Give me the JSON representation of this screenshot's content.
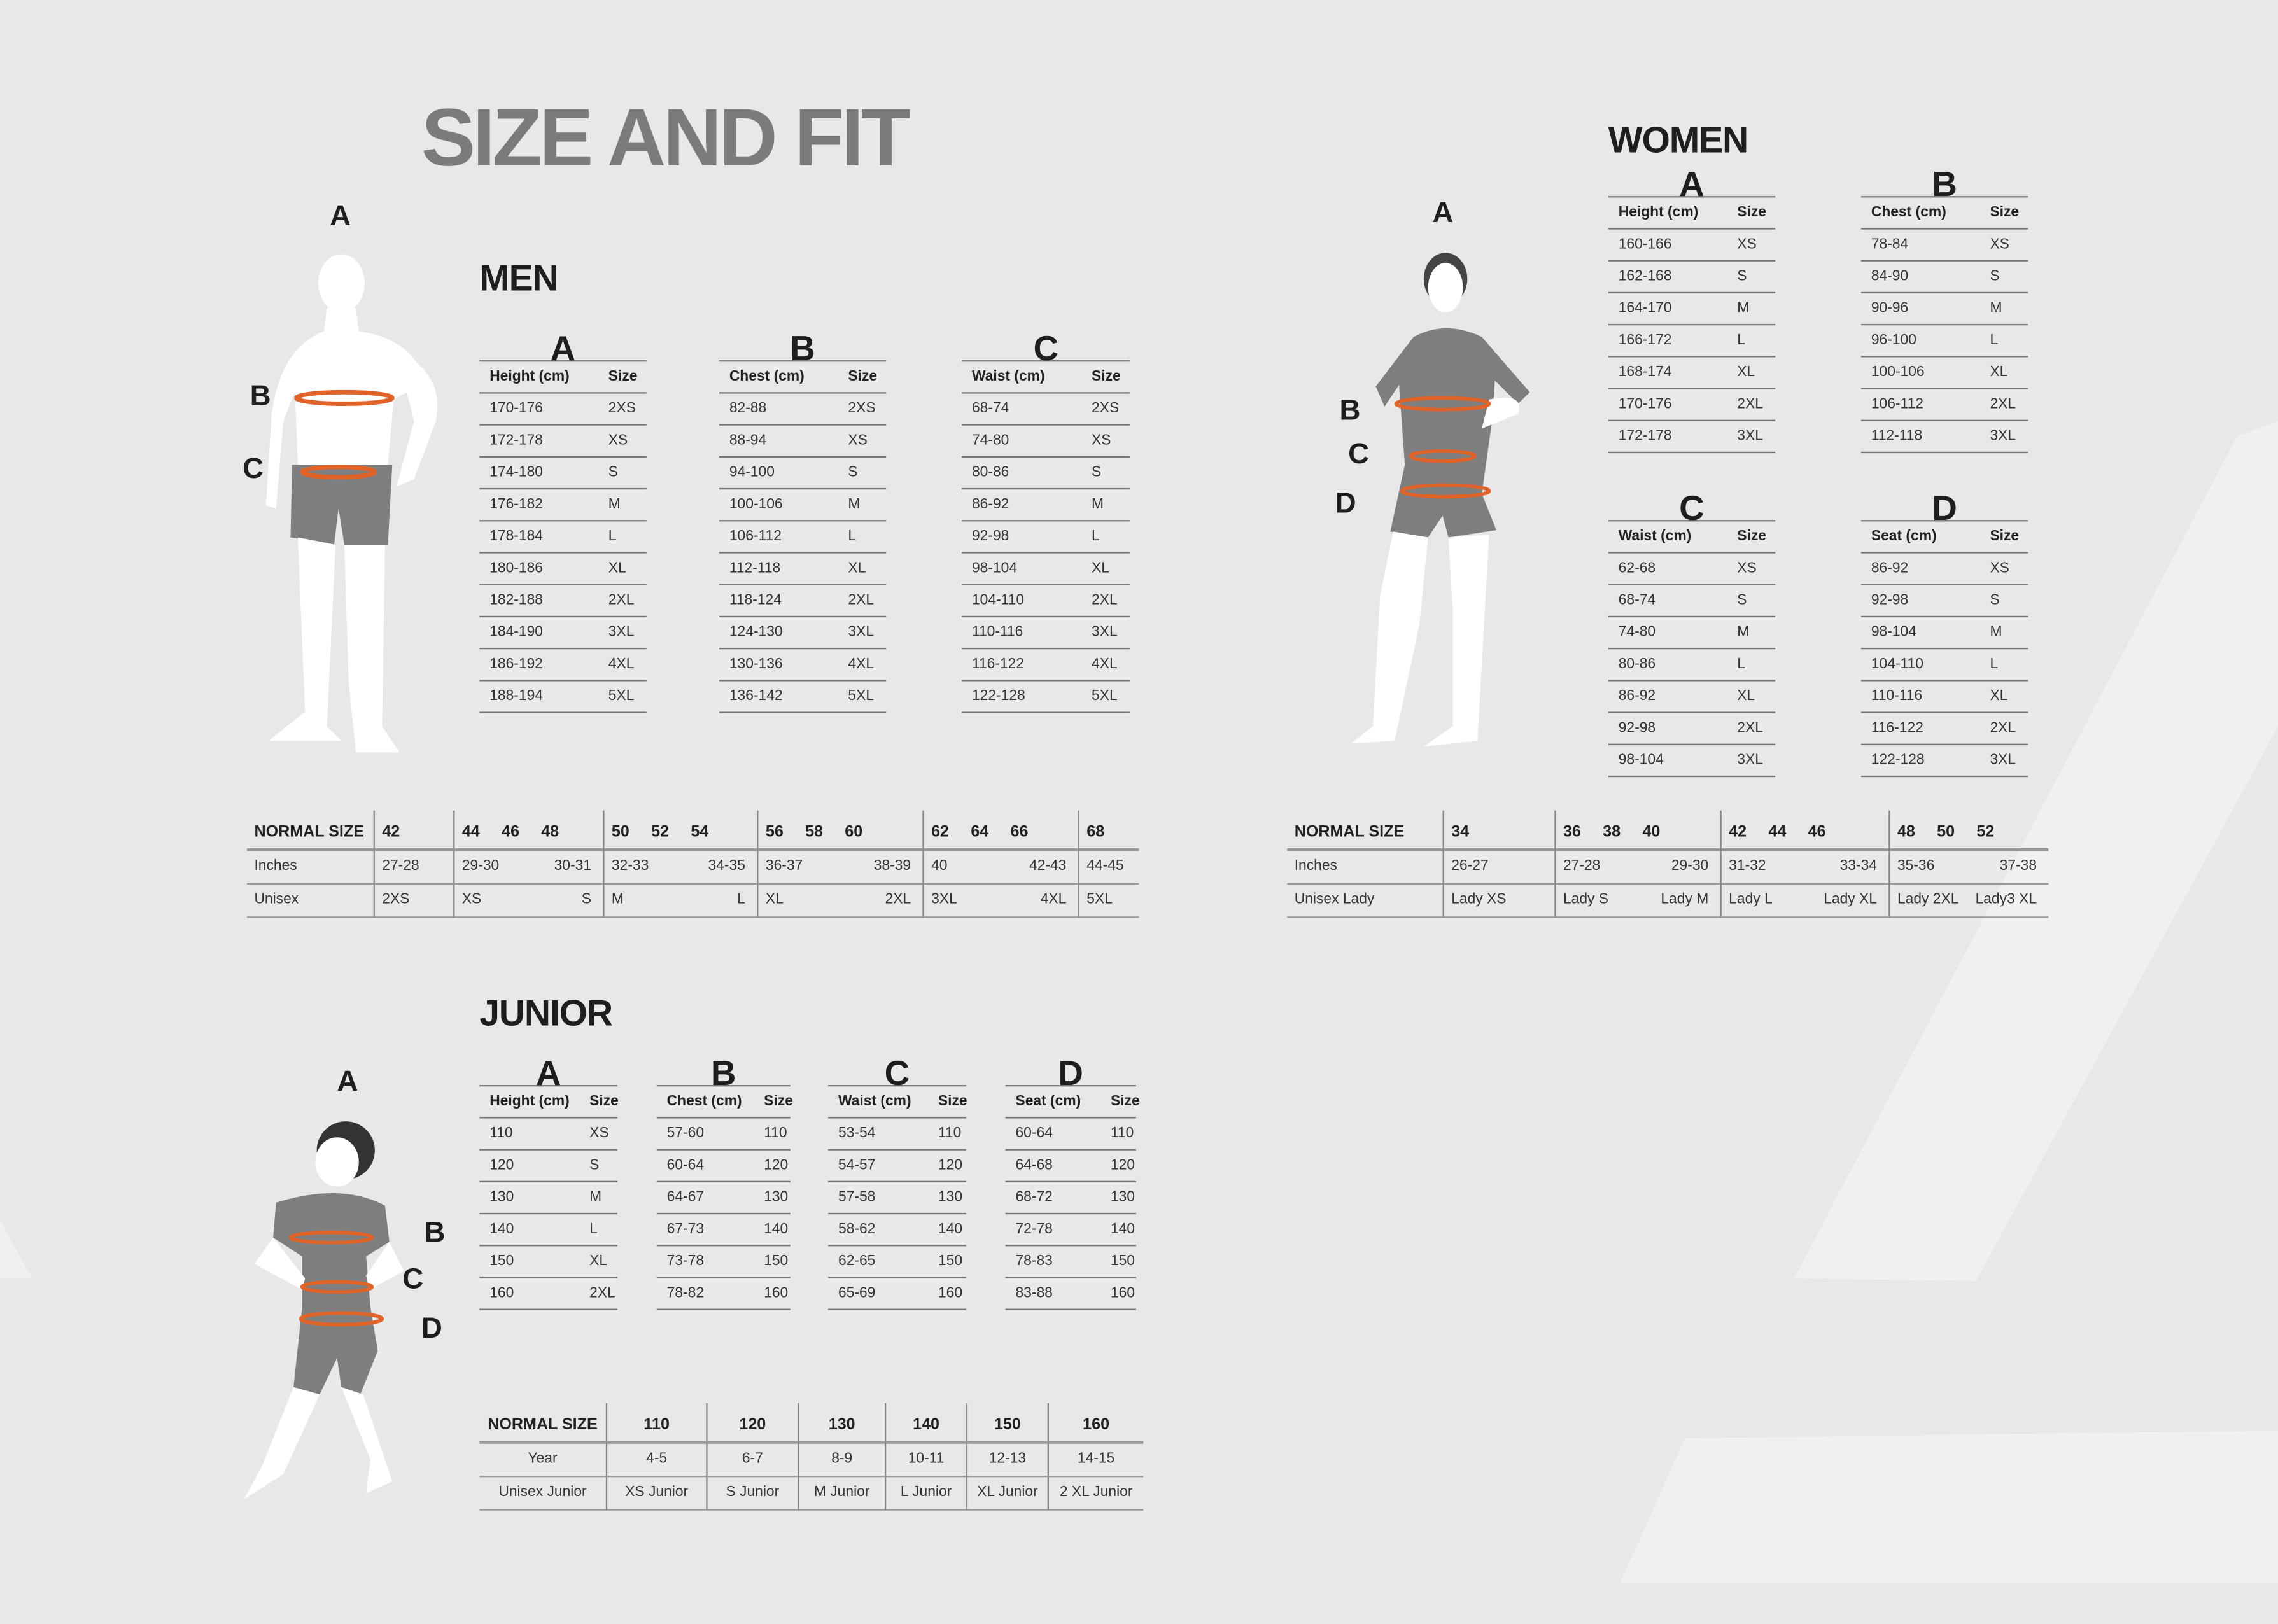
{
  "title": "SIZE AND FIT",
  "colors": {
    "background": "#e8e8e8",
    "title": "#7b7b7b",
    "measure_band": "#e0632a",
    "garment": "#7e7e7e",
    "body": "#ffffff"
  },
  "men": {
    "heading": "MEN",
    "figure_labels": [
      "A",
      "B",
      "C"
    ],
    "tables": [
      {
        "letter": "A",
        "headers": [
          "Height (cm)",
          "Size"
        ],
        "rows": [
          [
            "170-176",
            "2XS"
          ],
          [
            "172-178",
            "XS"
          ],
          [
            "174-180",
            "S"
          ],
          [
            "176-182",
            "M"
          ],
          [
            "178-184",
            "L"
          ],
          [
            "180-186",
            "XL"
          ],
          [
            "182-188",
            "2XL"
          ],
          [
            "184-190",
            "3XL"
          ],
          [
            "186-192",
            "4XL"
          ],
          [
            "188-194",
            "5XL"
          ]
        ]
      },
      {
        "letter": "B",
        "headers": [
          "Chest (cm)",
          "Size"
        ],
        "rows": [
          [
            "82-88",
            "2XS"
          ],
          [
            "88-94",
            "XS"
          ],
          [
            "94-100",
            "S"
          ],
          [
            "100-106",
            "M"
          ],
          [
            "106-112",
            "L"
          ],
          [
            "112-118",
            "XL"
          ],
          [
            "118-124",
            "2XL"
          ],
          [
            "124-130",
            "3XL"
          ],
          [
            "130-136",
            "4XL"
          ],
          [
            "136-142",
            "5XL"
          ]
        ]
      },
      {
        "letter": "C",
        "headers": [
          "Waist (cm)",
          "Size"
        ],
        "rows": [
          [
            "68-74",
            "2XS"
          ],
          [
            "74-80",
            "XS"
          ],
          [
            "80-86",
            "S"
          ],
          [
            "86-92",
            "M"
          ],
          [
            "92-98",
            "L"
          ],
          [
            "98-104",
            "XL"
          ],
          [
            "104-110",
            "2XL"
          ],
          [
            "110-116",
            "3XL"
          ],
          [
            "116-122",
            "4XL"
          ],
          [
            "122-128",
            "5XL"
          ]
        ]
      }
    ],
    "normal": {
      "labels": [
        "NORMAL SIZE",
        "Inches",
        "Unisex"
      ],
      "groups": [
        {
          "sizes": [
            "42"
          ],
          "inches": [
            "27-28"
          ],
          "unisex": [
            "2XS"
          ]
        },
        {
          "sizes": [
            "44",
            "46",
            "48"
          ],
          "inches": [
            "29-30",
            "30-31"
          ],
          "unisex": [
            "XS",
            "S"
          ]
        },
        {
          "sizes": [
            "50",
            "52",
            "54"
          ],
          "inches": [
            "32-33",
            "34-35"
          ],
          "unisex": [
            "M",
            "L"
          ]
        },
        {
          "sizes": [
            "56",
            "58",
            "60"
          ],
          "inches": [
            "36-37",
            "38-39"
          ],
          "unisex": [
            "XL",
            "2XL"
          ]
        },
        {
          "sizes": [
            "62",
            "64",
            "66"
          ],
          "inches": [
            "40",
            "42-43"
          ],
          "unisex": [
            "3XL",
            "4XL"
          ]
        },
        {
          "sizes": [
            "68"
          ],
          "inches": [
            "44-45"
          ],
          "unisex": [
            "5XL"
          ]
        }
      ]
    }
  },
  "women": {
    "heading": "WOMEN",
    "figure_labels": [
      "A",
      "B",
      "C",
      "D"
    ],
    "tables": [
      {
        "letter": "A",
        "headers": [
          "Height (cm)",
          "Size"
        ],
        "rows": [
          [
            "160-166",
            "XS"
          ],
          [
            "162-168",
            "S"
          ],
          [
            "164-170",
            "M"
          ],
          [
            "166-172",
            "L"
          ],
          [
            "168-174",
            "XL"
          ],
          [
            "170-176",
            "2XL"
          ],
          [
            "172-178",
            "3XL"
          ]
        ]
      },
      {
        "letter": "B",
        "headers": [
          "Chest (cm)",
          "Size"
        ],
        "rows": [
          [
            "78-84",
            "XS"
          ],
          [
            "84-90",
            "S"
          ],
          [
            "90-96",
            "M"
          ],
          [
            "96-100",
            "L"
          ],
          [
            "100-106",
            "XL"
          ],
          [
            "106-112",
            "2XL"
          ],
          [
            "112-118",
            "3XL"
          ]
        ]
      },
      {
        "letter": "C",
        "headers": [
          "Waist (cm)",
          "Size"
        ],
        "rows": [
          [
            "62-68",
            "XS"
          ],
          [
            "68-74",
            "S"
          ],
          [
            "74-80",
            "M"
          ],
          [
            "80-86",
            "L"
          ],
          [
            "86-92",
            "XL"
          ],
          [
            "92-98",
            "2XL"
          ],
          [
            "98-104",
            "3XL"
          ]
        ]
      },
      {
        "letter": "D",
        "headers": [
          "Seat (cm)",
          "Size"
        ],
        "rows": [
          [
            "86-92",
            "XS"
          ],
          [
            "92-98",
            "S"
          ],
          [
            "98-104",
            "M"
          ],
          [
            "104-110",
            "L"
          ],
          [
            "110-116",
            "XL"
          ],
          [
            "116-122",
            "2XL"
          ],
          [
            "122-128",
            "3XL"
          ]
        ]
      }
    ],
    "normal": {
      "labels": [
        "NORMAL SIZE",
        "Inches",
        "Unisex Lady"
      ],
      "groups": [
        {
          "sizes": [
            "34"
          ],
          "inches": [
            "26-27"
          ],
          "unisex": [
            "Lady XS"
          ]
        },
        {
          "sizes": [
            "36",
            "38",
            "40"
          ],
          "inches": [
            "27-28",
            "29-30"
          ],
          "unisex": [
            "Lady S",
            "Lady M"
          ]
        },
        {
          "sizes": [
            "42",
            "44",
            "46"
          ],
          "inches": [
            "31-32",
            "33-34"
          ],
          "unisex": [
            "Lady L",
            "Lady XL"
          ]
        },
        {
          "sizes": [
            "48",
            "50",
            "52"
          ],
          "inches": [
            "35-36",
            "37-38"
          ],
          "unisex": [
            "Lady 2XL",
            "Lady3 XL"
          ]
        }
      ]
    }
  },
  "junior": {
    "heading": "JUNIOR",
    "figure_labels": [
      "A",
      "B",
      "C",
      "D"
    ],
    "tables": [
      {
        "letter": "A",
        "headers": [
          "Height (cm)",
          "Size"
        ],
        "rows": [
          [
            "110",
            "XS"
          ],
          [
            "120",
            "S"
          ],
          [
            "130",
            "M"
          ],
          [
            "140",
            "L"
          ],
          [
            "150",
            "XL"
          ],
          [
            "160",
            "2XL"
          ]
        ]
      },
      {
        "letter": "B",
        "headers": [
          "Chest (cm)",
          "Size"
        ],
        "rows": [
          [
            "57-60",
            "110"
          ],
          [
            "60-64",
            "120"
          ],
          [
            "64-67",
            "130"
          ],
          [
            "67-73",
            "140"
          ],
          [
            "73-78",
            "150"
          ],
          [
            "78-82",
            "160"
          ]
        ]
      },
      {
        "letter": "C",
        "headers": [
          "Waist (cm)",
          "Size"
        ],
        "rows": [
          [
            "53-54",
            "110"
          ],
          [
            "54-57",
            "120"
          ],
          [
            "57-58",
            "130"
          ],
          [
            "58-62",
            "140"
          ],
          [
            "62-65",
            "150"
          ],
          [
            "65-69",
            "160"
          ]
        ]
      },
      {
        "letter": "D",
        "headers": [
          "Seat (cm)",
          "Size"
        ],
        "rows": [
          [
            "60-64",
            "110"
          ],
          [
            "64-68",
            "120"
          ],
          [
            "68-72",
            "130"
          ],
          [
            "72-78",
            "140"
          ],
          [
            "78-83",
            "150"
          ],
          [
            "83-88",
            "160"
          ]
        ]
      }
    ],
    "normal": {
      "labels": [
        "NORMAL SIZE",
        "Year",
        "Unisex Junior"
      ],
      "groups": [
        {
          "sizes": [
            "110"
          ],
          "inches": [
            "4-5"
          ],
          "unisex": [
            "XS Junior"
          ]
        },
        {
          "sizes": [
            "120"
          ],
          "inches": [
            "6-7"
          ],
          "unisex": [
            "S Junior"
          ]
        },
        {
          "sizes": [
            "130"
          ],
          "inches": [
            "8-9"
          ],
          "unisex": [
            "M Junior"
          ]
        },
        {
          "sizes": [
            "140"
          ],
          "inches": [
            "10-11"
          ],
          "unisex": [
            "L Junior"
          ]
        },
        {
          "sizes": [
            "150"
          ],
          "inches": [
            "12-13"
          ],
          "unisex": [
            "XL Junior"
          ]
        },
        {
          "sizes": [
            "160"
          ],
          "inches": [
            "14-15"
          ],
          "unisex": [
            "2 XL Junior"
          ]
        }
      ]
    }
  }
}
